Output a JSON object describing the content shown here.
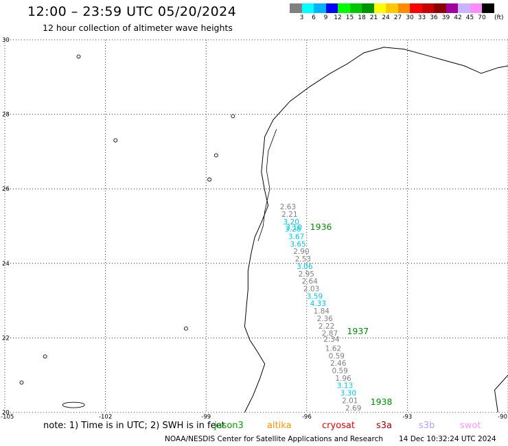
{
  "header": {
    "title": "12:00 – 23:59 UTC 05/20/2024",
    "subtitle": "12 hour collection of altimeter wave heights"
  },
  "legend": {
    "colors": [
      "#808080",
      "#00ffff",
      "#00b4ff",
      "#0000ff",
      "#00ff00",
      "#00c800",
      "#009600",
      "#ffff00",
      "#ffc800",
      "#ff8c00",
      "#ff0000",
      "#c80000",
      "#8b0000",
      "#a000a0",
      "#c8b4ff",
      "#ff8cff",
      "#000000"
    ],
    "labels": [
      "3",
      "6",
      "9",
      "12",
      "15",
      "18",
      "21",
      "24",
      "27",
      "30",
      "33",
      "36",
      "39",
      "42",
      "45",
      "70"
    ],
    "unit": "(ft)"
  },
  "map": {
    "lat_labels": [
      "30",
      "28",
      "26",
      "24",
      "22",
      "20"
    ],
    "lon_labels": [
      "-105",
      "-102",
      "-99",
      "-96",
      "-93",
      "-90"
    ],
    "track_labels": [
      {
        "text": "1936",
        "lon": -95.9,
        "lat": 24.9
      },
      {
        "text": "1937",
        "lon": -94.8,
        "lat": 22.1
      },
      {
        "text": "1938",
        "lon": -94.1,
        "lat": 20.2
      }
    ],
    "measurements": [
      {
        "v": "2.63",
        "lon": -96.8,
        "lat": 25.45,
        "c": "#808080"
      },
      {
        "v": "2.21",
        "lon": -96.75,
        "lat": 25.25,
        "c": "#808080"
      },
      {
        "v": "3.20",
        "lon": -96.7,
        "lat": 25.05,
        "c": "#00c8e6"
      },
      {
        "v": "3.10",
        "lon": -96.62,
        "lat": 24.9,
        "c": "#00c8e6"
      },
      {
        "v": "3.28",
        "lon": -96.65,
        "lat": 24.85,
        "c": "#00c8e6"
      },
      {
        "v": "3.67",
        "lon": -96.55,
        "lat": 24.65,
        "c": "#00c8e6"
      },
      {
        "v": "3.65",
        "lon": -96.5,
        "lat": 24.45,
        "c": "#00c8e6"
      },
      {
        "v": "2.90",
        "lon": -96.4,
        "lat": 24.25,
        "c": "#808080"
      },
      {
        "v": "2.53",
        "lon": -96.35,
        "lat": 24.05,
        "c": "#808080"
      },
      {
        "v": "3.06",
        "lon": -96.3,
        "lat": 23.85,
        "c": "#00c8e6"
      },
      {
        "v": "2.95",
        "lon": -96.25,
        "lat": 23.65,
        "c": "#808080"
      },
      {
        "v": "2.64",
        "lon": -96.15,
        "lat": 23.45,
        "c": "#808080"
      },
      {
        "v": "2.03",
        "lon": -96.1,
        "lat": 23.25,
        "c": "#808080"
      },
      {
        "v": "3.59",
        "lon": -96.0,
        "lat": 23.05,
        "c": "#00c8e6"
      },
      {
        "v": "4.33",
        "lon": -95.9,
        "lat": 22.85,
        "c": "#00c8e6"
      },
      {
        "v": "1.84",
        "lon": -95.8,
        "lat": 22.65,
        "c": "#808080"
      },
      {
        "v": "2.36",
        "lon": -95.7,
        "lat": 22.45,
        "c": "#808080"
      },
      {
        "v": "2.22",
        "lon": -95.65,
        "lat": 22.25,
        "c": "#808080"
      },
      {
        "v": "2.87",
        "lon": -95.55,
        "lat": 22.05,
        "c": "#808080"
      },
      {
        "v": "2.34",
        "lon": -95.5,
        "lat": 21.9,
        "c": "#808080"
      },
      {
        "v": "1.62",
        "lon": -95.45,
        "lat": 21.65,
        "c": "#808080"
      },
      {
        "v": "0.59",
        "lon": -95.35,
        "lat": 21.45,
        "c": "#808080"
      },
      {
        "v": "2.46",
        "lon": -95.3,
        "lat": 21.25,
        "c": "#808080"
      },
      {
        "v": "0.59",
        "lon": -95.25,
        "lat": 21.05,
        "c": "#808080"
      },
      {
        "v": "1.96",
        "lon": -95.15,
        "lat": 20.85,
        "c": "#808080"
      },
      {
        "v": "3.13",
        "lon": -95.1,
        "lat": 20.65,
        "c": "#00c8e6"
      },
      {
        "v": "3.30",
        "lon": -95.0,
        "lat": 20.45,
        "c": "#00c8e6"
      },
      {
        "v": "2.01",
        "lon": -94.95,
        "lat": 20.25,
        "c": "#808080"
      },
      {
        "v": "2.69",
        "lon": -94.85,
        "lat": 20.05,
        "c": "#808080"
      }
    ]
  },
  "note": {
    "text": "note: 1) Time is in UTC; 2) SWH is in feet"
  },
  "satellites": [
    {
      "name": "jason3",
      "color": "#00a000"
    },
    {
      "name": "altika",
      "color": "#ff9600"
    },
    {
      "name": "cryosat",
      "color": "#e60000"
    },
    {
      "name": "s3a",
      "color": "#a00000"
    },
    {
      "name": "s3b",
      "color": "#b4a0ff"
    },
    {
      "name": "swot",
      "color": "#ff96ff"
    }
  ],
  "footer": {
    "credit": "NOAA/NESDIS Center for Satellite Applications and Research",
    "timestamp": "14 Dec 10:32:24 UTC 2024"
  }
}
